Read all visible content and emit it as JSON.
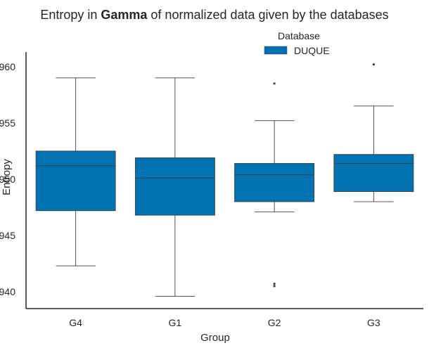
{
  "chart_data": {
    "type": "box",
    "title_prefix": "Entropy in ",
    "title_bold": "Gamma",
    "title_suffix": " of normalized data given by the databases",
    "xlabel": "Group",
    "ylabel": "Entropy",
    "categories": [
      "G4",
      "G1",
      "G2",
      "G3"
    ],
    "ylim": [
      0.9385,
      0.9613
    ],
    "yticks": [
      0.94,
      0.945,
      0.95,
      0.955,
      0.96
    ],
    "ytick_labels": [
      "940",
      "945",
      "950",
      "955",
      "960"
    ],
    "legend": {
      "title": "Database",
      "placement": "top-center",
      "entries": [
        "DUQUE"
      ]
    },
    "series": [
      {
        "name": "DUQUE",
        "color": "#0173b2",
        "boxes": [
          {
            "category": "G4",
            "whisker_low": 0.9423,
            "q1": 0.9472,
            "median": 0.9512,
            "q3": 0.9525,
            "whisker_high": 0.959,
            "outliers": []
          },
          {
            "category": "G1",
            "whisker_low": 0.9396,
            "q1": 0.9468,
            "median": 0.9501,
            "q3": 0.9519,
            "whisker_high": 0.959,
            "outliers": []
          },
          {
            "category": "G2",
            "whisker_low": 0.9471,
            "q1": 0.948,
            "median": 0.9504,
            "q3": 0.9514,
            "whisker_high": 0.9552,
            "outliers": [
              0.9407,
              0.9405,
              0.9585
            ]
          },
          {
            "category": "G3",
            "whisker_low": 0.948,
            "q1": 0.9489,
            "median": 0.9514,
            "q3": 0.9522,
            "whisker_high": 0.9565,
            "outliers": [
              0.9602
            ]
          }
        ]
      }
    ]
  }
}
